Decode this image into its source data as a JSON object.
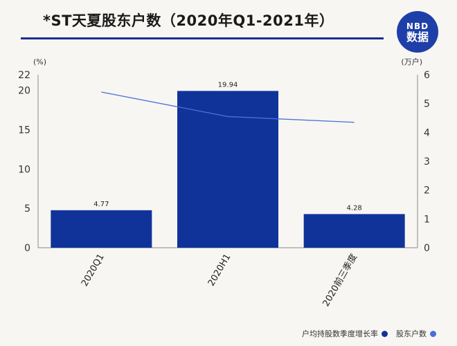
{
  "header": {
    "title": "*ST天夏股东户数（2020年Q1-2021年）",
    "logo_line1": "NBD",
    "logo_line2": "数据"
  },
  "colors": {
    "bar": "#10339a",
    "line": "#4a6fd8",
    "title_rule": "#1b2f8f",
    "logo_bg": "#1f3fa8"
  },
  "chart_data": {
    "type": "bar",
    "categories": [
      "2020Q1",
      "2020H1",
      "2020前三季度"
    ],
    "series": [
      {
        "name": "户均持股数季度增长率",
        "type": "bar",
        "axis": "left",
        "values": [
          4.77,
          19.94,
          4.28
        ],
        "labels": [
          "4.77",
          "19.94",
          "4.28"
        ]
      },
      {
        "name": "股东户数",
        "type": "line",
        "axis": "right",
        "values": [
          5.4,
          4.55,
          4.35
        ]
      }
    ],
    "y_left": {
      "unit": "(%)",
      "ylim": [
        0,
        22
      ],
      "ticks": [
        0,
        5,
        10,
        15,
        20,
        22
      ]
    },
    "y_right": {
      "unit": "(万户)",
      "ylim": [
        0,
        6
      ],
      "ticks": [
        0,
        1,
        2,
        3,
        4,
        5,
        6
      ]
    },
    "grid": false,
    "legend_position": "bottom-right"
  }
}
